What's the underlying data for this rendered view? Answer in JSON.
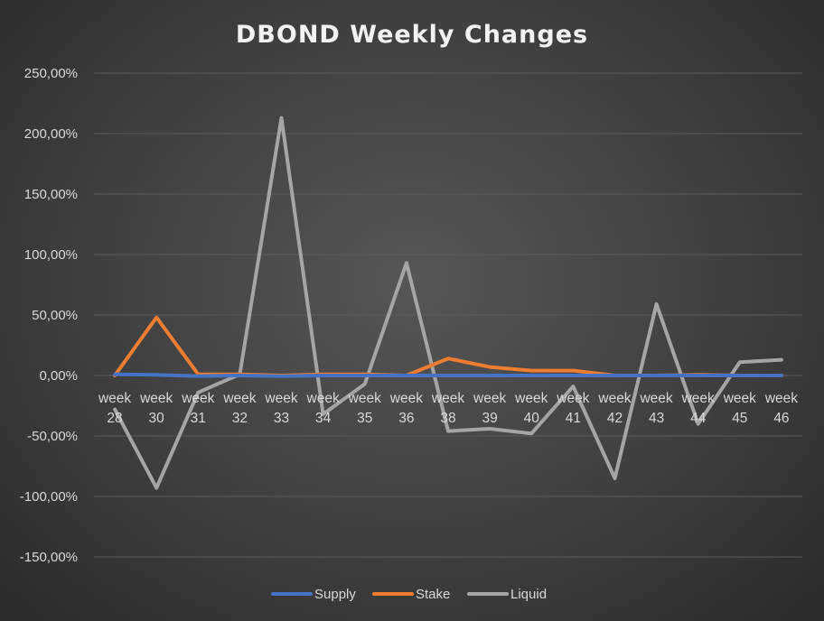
{
  "chart_data": {
    "type": "line",
    "title": "DBOND Weekly Changes",
    "xlabel": "",
    "ylabel": "",
    "ylim": [
      -150,
      250
    ],
    "yticks": [
      250,
      200,
      150,
      100,
      50,
      0,
      -50,
      -100,
      -150
    ],
    "ytick_labels": [
      "250,00%",
      "200,00%",
      "150,00%",
      "100,00%",
      "50,00%",
      "0,00%",
      "-50,00%",
      "-100,00%",
      "-150,00%"
    ],
    "grid": true,
    "legend_position": "bottom",
    "categories": [
      [
        "week",
        "28"
      ],
      [
        "week",
        "30"
      ],
      [
        "week",
        "31"
      ],
      [
        "week",
        "32"
      ],
      [
        "week",
        "33"
      ],
      [
        "week",
        "34"
      ],
      [
        "week",
        "35"
      ],
      [
        "week",
        "36"
      ],
      [
        "week",
        "38"
      ],
      [
        "week",
        "39"
      ],
      [
        "week",
        "40"
      ],
      [
        "week",
        "41"
      ],
      [
        "week",
        "42"
      ],
      [
        "week",
        "43"
      ],
      [
        "week",
        "44"
      ],
      [
        "week",
        "45"
      ],
      [
        "week",
        "46"
      ]
    ],
    "series": [
      {
        "name": "Supply",
        "color": "#4472c4",
        "values": [
          1,
          0.5,
          -0.5,
          0,
          -0.5,
          0,
          0,
          0,
          0,
          0,
          0,
          0,
          0,
          0,
          0,
          0,
          0
        ]
      },
      {
        "name": "Stake",
        "color": "#ed7d31",
        "values": [
          0,
          48,
          1,
          1,
          0,
          1,
          1,
          0,
          14,
          7,
          4,
          4,
          0,
          0,
          0.5,
          0,
          0
        ]
      },
      {
        "name": "Liquid",
        "color": "#a5a5a5",
        "values": [
          -28,
          -93,
          -14,
          1,
          213,
          -32,
          -7,
          93,
          -46,
          -44,
          -48,
          -9,
          -85,
          59,
          -40,
          11,
          13
        ]
      }
    ]
  }
}
